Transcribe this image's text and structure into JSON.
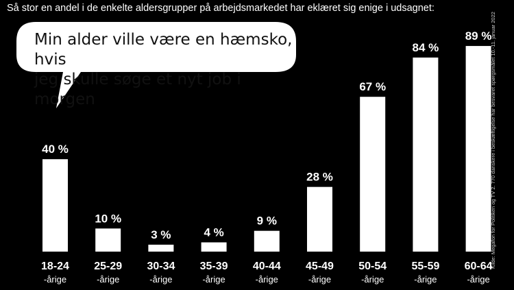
{
  "header": {
    "subtitle": "Så stor en andel i de enkelte aldersgrupper på arbejdsmarkedet har eklæret sig enige i udsagnet:",
    "quote_line1": "Min alder ville være en hæmsko, hvis",
    "quote_line2": "jeg skulle søge et nyt job i morgen",
    "source": "Kilde: Megafon for Politiken og TV 2. 770 danskere i beskæftigelse har besvaret spørgsmålet 10.-11. januar 2022"
  },
  "colors": {
    "background": "#000000",
    "bar": "#ffffff",
    "text": "#ffffff",
    "bubble": "#ffffff"
  },
  "chart_data": {
    "type": "bar",
    "categories": [
      "18-24",
      "25-29",
      "30-34",
      "35-39",
      "40-44",
      "45-49",
      "50-54",
      "55-59",
      "60-64"
    ],
    "category_suffix": "-årige",
    "values": [
      40,
      10,
      3,
      4,
      9,
      28,
      67,
      84,
      89
    ],
    "value_labels": [
      "40 %",
      "10 %",
      "3 %",
      "4 %",
      "9 %",
      "28 %",
      "67 %",
      "84 %",
      "89 %"
    ],
    "unit": "%",
    "ylim": [
      0,
      100
    ],
    "grid": false,
    "legend": "none"
  }
}
